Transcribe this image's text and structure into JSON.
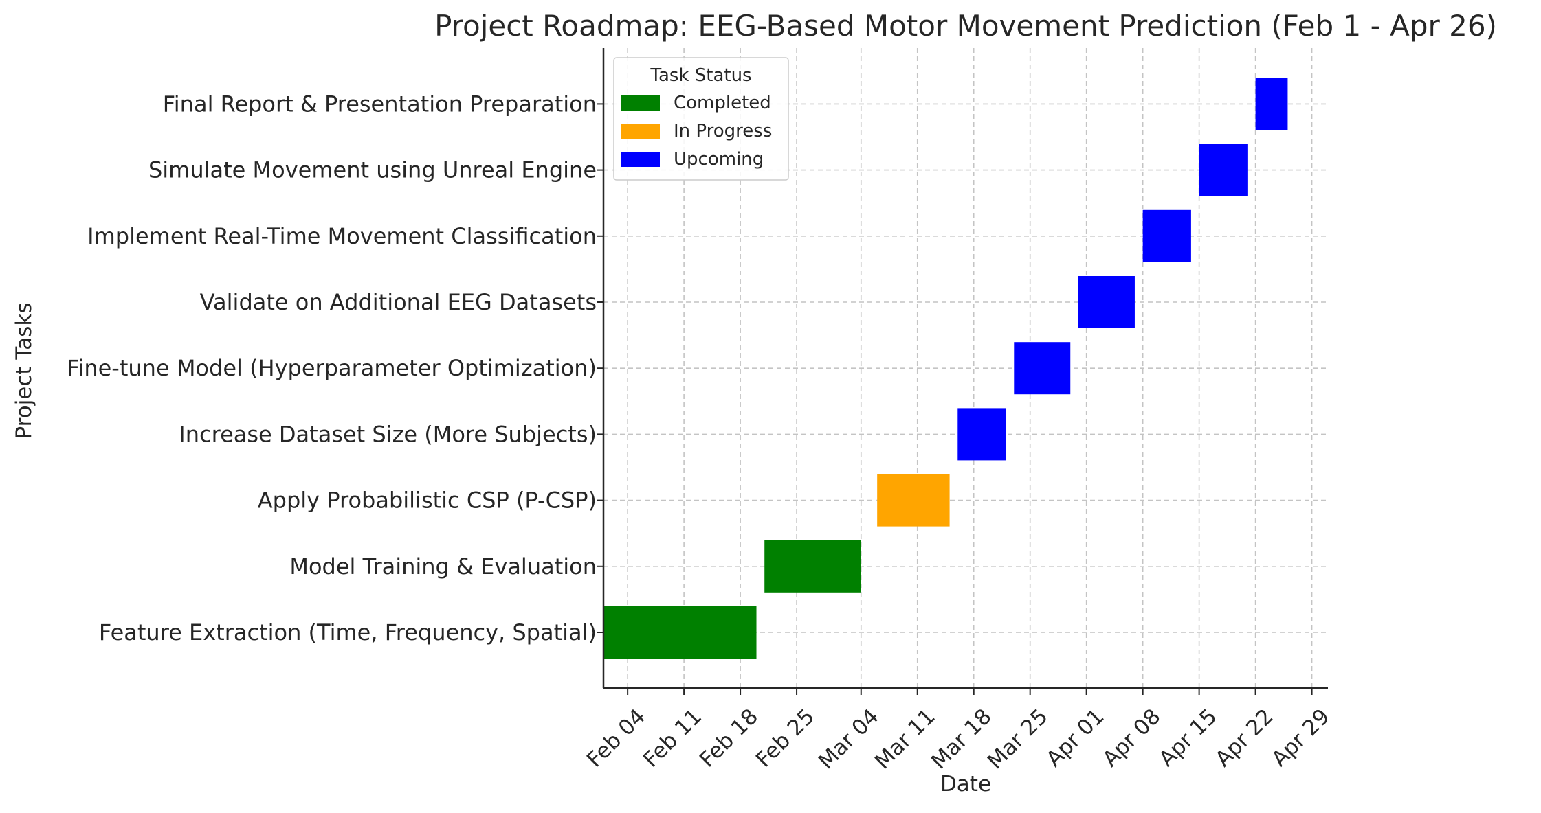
{
  "chart_data": {
    "type": "gantt",
    "title": "Project Roadmap: EEG-Based Motor Movement Prediction (Feb 1 - Apr 26)",
    "xlabel": "Date",
    "ylabel": "Project Tasks",
    "xlim": [
      "2024-02-01",
      "2024-05-01"
    ],
    "x_ticks": [
      {
        "date": "2024-02-04",
        "label": "Feb 04"
      },
      {
        "date": "2024-02-11",
        "label": "Feb 11"
      },
      {
        "date": "2024-02-18",
        "label": "Feb 18"
      },
      {
        "date": "2024-02-25",
        "label": "Feb 25"
      },
      {
        "date": "2024-03-04",
        "label": "Mar 04"
      },
      {
        "date": "2024-03-11",
        "label": "Mar 11"
      },
      {
        "date": "2024-03-18",
        "label": "Mar 18"
      },
      {
        "date": "2024-03-25",
        "label": "Mar 25"
      },
      {
        "date": "2024-04-01",
        "label": "Apr 01"
      },
      {
        "date": "2024-04-08",
        "label": "Apr 08"
      },
      {
        "date": "2024-04-15",
        "label": "Apr 15"
      },
      {
        "date": "2024-04-22",
        "label": "Apr 22"
      },
      {
        "date": "2024-04-29",
        "label": "Apr 29"
      }
    ],
    "grid": true,
    "legend": {
      "title": "Task Status",
      "placement": "top-left",
      "entries": [
        {
          "label": "Completed",
          "color": "#008000"
        },
        {
          "label": "In Progress",
          "color": "#FFA500"
        },
        {
          "label": "Upcoming",
          "color": "#0000FF"
        }
      ]
    },
    "tasks": [
      {
        "name": "Feature Extraction (Time, Frequency, Spatial)",
        "start": "2024-02-01",
        "end": "2024-02-20",
        "status": "Completed"
      },
      {
        "name": "Model Training & Evaluation",
        "start": "2024-02-21",
        "end": "2024-03-04",
        "status": "Completed"
      },
      {
        "name": "Apply Probabilistic CSP (P-CSP)",
        "start": "2024-03-06",
        "end": "2024-03-15",
        "status": "In Progress"
      },
      {
        "name": "Increase Dataset Size (More Subjects)",
        "start": "2024-03-16",
        "end": "2024-03-22",
        "status": "Upcoming"
      },
      {
        "name": "Fine-tune Model (Hyperparameter Optimization)",
        "start": "2024-03-23",
        "end": "2024-03-30",
        "status": "Upcoming"
      },
      {
        "name": "Validate on Additional EEG Datasets",
        "start": "2024-03-31",
        "end": "2024-04-07",
        "status": "Upcoming"
      },
      {
        "name": "Implement Real-Time Movement Classification",
        "start": "2024-04-08",
        "end": "2024-04-14",
        "status": "Upcoming"
      },
      {
        "name": "Simulate Movement using Unreal Engine",
        "start": "2024-04-15",
        "end": "2024-04-21",
        "status": "Upcoming"
      },
      {
        "name": "Final Report & Presentation Preparation",
        "start": "2024-04-22",
        "end": "2024-04-26",
        "status": "Upcoming"
      }
    ]
  }
}
